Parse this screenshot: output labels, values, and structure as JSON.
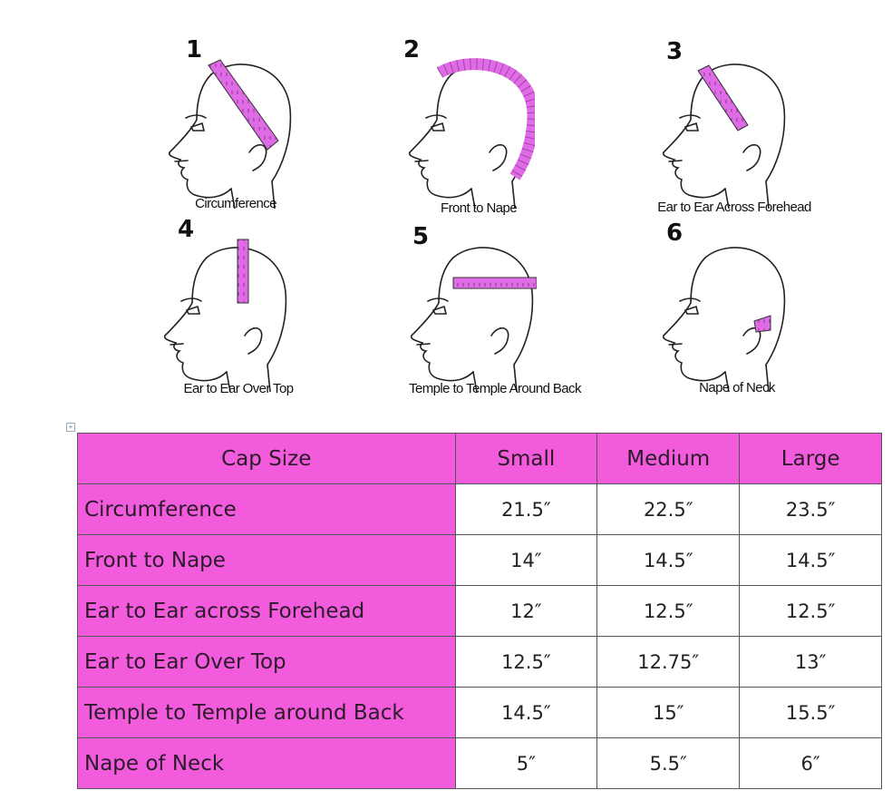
{
  "diagrams": [
    {
      "number": "1",
      "label": "Circumference"
    },
    {
      "number": "2",
      "label": "Front to Nape"
    },
    {
      "number": "3",
      "label": "Ear to Ear Across Forehead"
    },
    {
      "number": "4",
      "label": "Ear to Ear Over Top"
    },
    {
      "number": "5",
      "label": "Temple to Temple Around Back"
    },
    {
      "number": "6",
      "label": "Nape of Neck"
    }
  ],
  "table": {
    "headers": [
      "Cap Size",
      "Small",
      "Medium",
      "Large"
    ],
    "rows": [
      [
        "Circumference",
        "21.5″",
        "22.5″",
        "23.5″"
      ],
      [
        "Front to Nape",
        "14″",
        "14.5″",
        "14.5″"
      ],
      [
        "Ear to Ear across Forehead",
        "12″",
        "12.5″",
        "12.5″"
      ],
      [
        "Ear to Ear Over Top",
        "12.5″",
        "12.75″",
        "13″"
      ],
      [
        "Temple to Temple around Back",
        "14.5″",
        "15″",
        "15.5″"
      ],
      [
        "Nape of Neck",
        "5″",
        "5.5″",
        "6″"
      ]
    ]
  },
  "colors": {
    "accent": "#f25bdc",
    "tape": "#e06be6"
  }
}
